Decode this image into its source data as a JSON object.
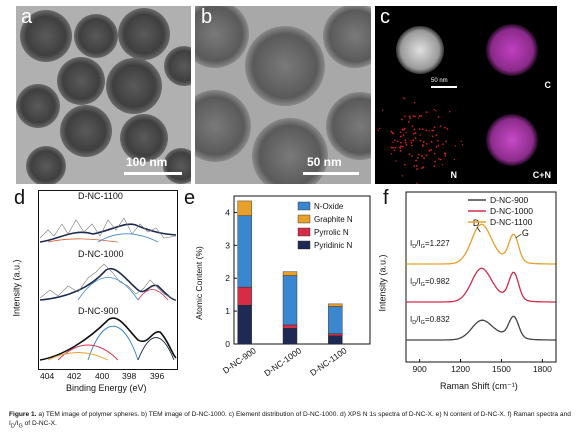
{
  "panel_a": {
    "letter": "a",
    "scale_label": "100 nm"
  },
  "panel_b": {
    "letter": "b",
    "scale_label": "50 nm"
  },
  "panel_c": {
    "letter": "c",
    "scale_label": "50 nm",
    "map_labels": [
      "C",
      "N",
      "C+N"
    ],
    "colors": {
      "carbon": "#c040c0",
      "nitrogen": "#d22020"
    }
  },
  "panel_d": {
    "letter": "d",
    "ylabel": "Intensity (a.u.)",
    "xlabel": "Binding Energy (eV)",
    "x_ticks": [
      "404",
      "402",
      "400",
      "398",
      "396"
    ],
    "spectra": [
      "D-NC-1100",
      "D-NC-1000",
      "D-NC-900"
    ]
  },
  "chart_data": [
    {
      "type": "bar",
      "panel": "e",
      "ylabel": "Atomic Content (%)",
      "categories": [
        "D-NC-900",
        "D-NC-1000",
        "D-NC-1100"
      ],
      "ylim": [
        0,
        4.5
      ],
      "y_ticks": [
        "0",
        "1",
        "2",
        "3",
        "4"
      ],
      "stacked": true,
      "series": [
        {
          "name": "Pyridinic N",
          "color": "#1e2a55",
          "values": [
            1.18,
            0.48,
            0.25
          ]
        },
        {
          "name": "Pyrrolic N",
          "color": "#d62c48",
          "values": [
            0.55,
            0.1,
            0.06
          ]
        },
        {
          "name": "N-Oxide",
          "color": "#3a86cf",
          "values": [
            2.17,
            1.5,
            0.83
          ]
        },
        {
          "name": "Graphite N",
          "color": "#e8a02c",
          "values": [
            0.45,
            0.12,
            0.08
          ]
        }
      ]
    },
    {
      "type": "line",
      "panel": "f",
      "ylabel": "Intensity (a.u.)",
      "xlabel": "Raman Shift (cm⁻¹)",
      "x_ticks": [
        "900",
        "1200",
        "1500",
        "1800"
      ],
      "peak_labels": [
        "D",
        "G"
      ],
      "series": [
        {
          "name": "D-NC-900",
          "color": "#444444",
          "ratio": "0.832"
        },
        {
          "name": "D-NC-1000",
          "color": "#d62c48",
          "ratio": "0.982"
        },
        {
          "name": "D-NC-1100",
          "color": "#e8a02c",
          "ratio": "1.227"
        }
      ]
    }
  ],
  "caption": {
    "bold": "Figure 1.",
    "text": " a) TEM image of polymer spheres. b) TEM image of D-NC-1000. c) Element distribution of D-NC-1000. d) XPS N 1s spectra of D-NC-X. e) N content of D-NC-X. f) Raman spectra and I",
    "sub1": "D",
    "mid": "/I",
    "sub2": "G",
    "end": " of D-NC-X."
  }
}
